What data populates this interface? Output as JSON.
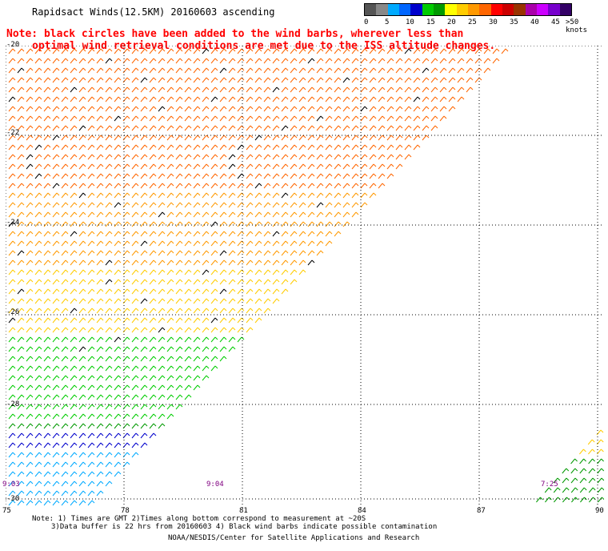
{
  "title": "Rapidsact Winds(12.5KM) 20160603 ascending",
  "note": {
    "line1": "Note: black circles have been added to the wind barbs, wherever less than",
    "line2": "optimal wind retrieval conditions are met due to the ISS altitude changes."
  },
  "legend": {
    "colors": [
      "#555555",
      "#888888",
      "#00aaff",
      "#0066ff",
      "#0000cc",
      "#00cc00",
      "#009900",
      "#ffff00",
      "#ffcc00",
      "#ff9900",
      "#ff6600",
      "#ff0000",
      "#cc0000",
      "#993300",
      "#aa00aa",
      "#cc00ff",
      "#7700cc",
      "#330066"
    ],
    "ticks": [
      "0",
      "5",
      "10",
      "15",
      "20",
      "25",
      "30",
      "35",
      "40",
      "45"
    ],
    "unit": ">50 knots"
  },
  "map": {
    "lat_labels": [
      "-20",
      "-22",
      "-24",
      "-26",
      "-28",
      "-30"
    ],
    "lon_labels": [
      "75",
      "78",
      "81",
      "84",
      "87",
      "90"
    ],
    "time_labels": [
      "9:03",
      "9:04",
      "7:25"
    ]
  },
  "footer": {
    "line1": "Note: 1) Times are GMT 2)Times along bottom correspond to measurement at ~20S",
    "line2": "3)Data buffer is 22 hrs from 20160603 4) Black wind barbs indicate possible contamination",
    "line3": "NOAA/NESDIS/Center for Satellite Applications and Research"
  }
}
